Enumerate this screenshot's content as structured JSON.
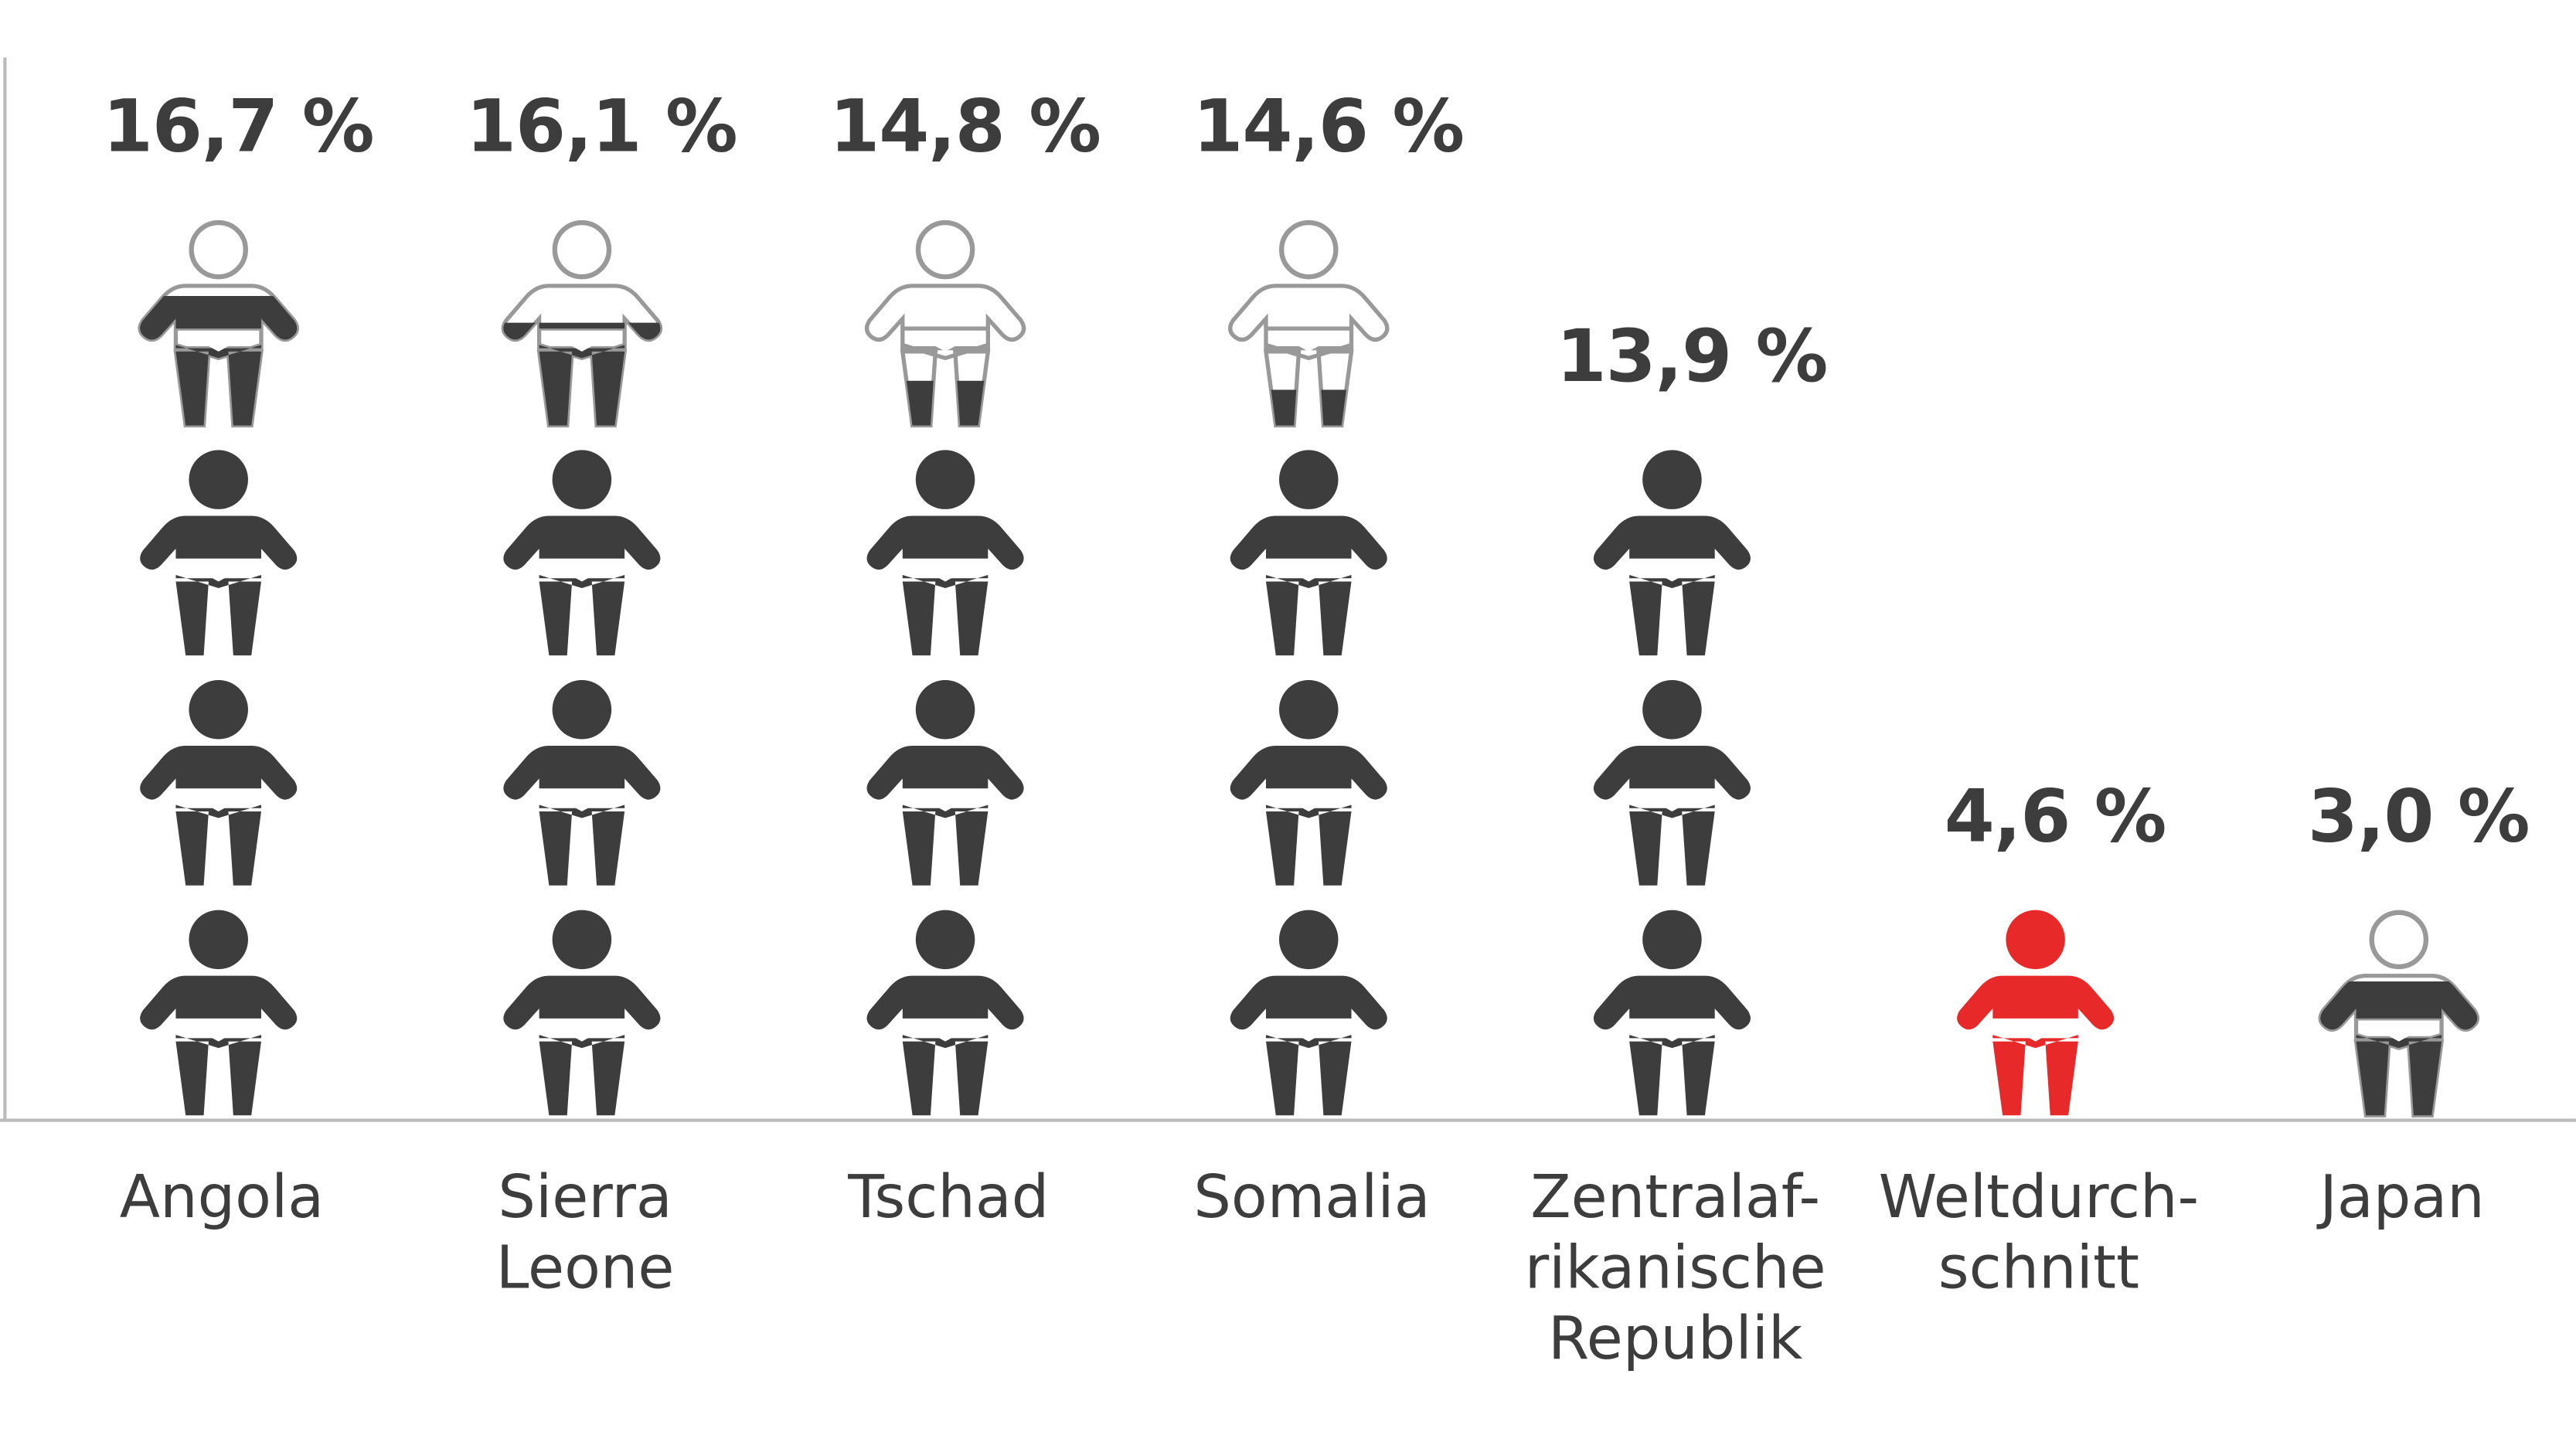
{
  "chart_data": {
    "type": "pictogram",
    "categories": [
      "Angola",
      "Sierra\nLeone",
      "Tschad",
      "Somalia",
      "Zentralaf-\nrikanische\nRepublik",
      "Weltdurch-\nschnitt",
      "Japan"
    ],
    "values": [
      16.7,
      16.1,
      14.8,
      14.6,
      13.9,
      4.6,
      3.0
    ],
    "value_labels": [
      "16,7 %",
      "16,1 %",
      "14,8 %",
      "14,6 %",
      "13,9 %",
      "4,6 %",
      "3,0 %"
    ],
    "color": "#3d3d3d",
    "highlight": "Weltdurchschnitt​",
    "highlight_index": 5,
    "highlight_color": "#e8292a"
  }
}
